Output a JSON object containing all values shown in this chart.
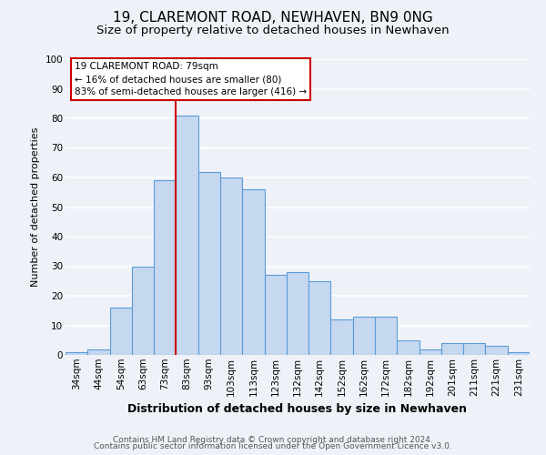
{
  "title": "19, CLAREMONT ROAD, NEWHAVEN, BN9 0NG",
  "subtitle": "Size of property relative to detached houses in Newhaven",
  "xlabel": "Distribution of detached houses by size in Newhaven",
  "ylabel": "Number of detached properties",
  "bar_color": "#c5d8f0",
  "bar_edge_color": "#5b9bd5",
  "categories": [
    "34sqm",
    "44sqm",
    "54sqm",
    "63sqm",
    "73sqm",
    "83sqm",
    "93sqm",
    "103sqm",
    "113sqm",
    "123sqm",
    "132sqm",
    "142sqm",
    "152sqm",
    "162sqm",
    "172sqm",
    "182sqm",
    "192sqm",
    "201sqm",
    "211sqm",
    "221sqm",
    "231sqm"
  ],
  "values": [
    1,
    2,
    16,
    30,
    59,
    81,
    62,
    60,
    56,
    27,
    28,
    25,
    12,
    13,
    13,
    5,
    2,
    4,
    4,
    3,
    1
  ],
  "ylim": [
    0,
    100
  ],
  "vline_x": 4.5,
  "vline_color": "#cc0000",
  "annotation_title": "19 CLAREMONT ROAD: 79sqm",
  "annotation_line1": "← 16% of detached houses are smaller (80)",
  "annotation_line2": "83% of semi-detached houses are larger (416) →",
  "footer_line1": "Contains HM Land Registry data © Crown copyright and database right 2024.",
  "footer_line2": "Contains public sector information licensed under the Open Government Licence v3.0.",
  "background_color": "#eef2f8",
  "grid_color": "#ffffff",
  "title_fontsize": 11,
  "subtitle_fontsize": 9.5,
  "xlabel_fontsize": 9,
  "ylabel_fontsize": 8,
  "tick_fontsize": 7.5,
  "footer_fontsize": 6.5
}
